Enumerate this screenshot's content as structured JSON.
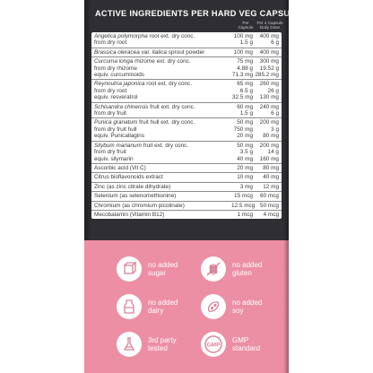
{
  "title": "ACTIVE INGREDIENTS PER HARD VEG CAPSULE:",
  "column_headers": {
    "per_capsule": [
      "Per",
      "Capsule"
    ],
    "daily_dose": [
      "Per 4 Capsule",
      "Daily Dose"
    ]
  },
  "rows": [
    {
      "lines": [
        {
          "latin": "Angelica polymorpha",
          "text": " root ext. dry conc.",
          "v": "100 mg",
          "d": "400 mg"
        },
        {
          "latin": "",
          "text": "from dry root",
          "v": "1.5 g",
          "d": "6 g"
        }
      ]
    },
    {
      "lines": [
        {
          "latin": "Brassica oleracea",
          "text": " var. italica sprout powder",
          "v": "100 mg",
          "d": "400 mg"
        }
      ]
    },
    {
      "lines": [
        {
          "latin": "Curcuma longa",
          "text": " rhizome ext. dry conc.",
          "v": "75 mg",
          "d": "300 mg"
        },
        {
          "latin": "",
          "text": "from dry rhizome",
          "v": "4.88 g",
          "d": "19.52 g"
        },
        {
          "latin": "",
          "text": "equiv. curcuminoids",
          "v": "71.3 mg",
          "d": "285.2 mg"
        }
      ]
    },
    {
      "lines": [
        {
          "latin": "Reynoutria japonica",
          "text": " root ext. dry conc.",
          "v": "65 mg",
          "d": "260 mg"
        },
        {
          "latin": "",
          "text": "from dry root",
          "v": "6.5 g",
          "d": "26 g"
        },
        {
          "latin": "",
          "text": "equiv. resveratrol",
          "v": "32.5 mg",
          "d": "130 mg"
        }
      ]
    },
    {
      "lines": [
        {
          "latin": "Schisandra chinensis",
          "text": " fruit ext. dry conc.",
          "v": "60 mg",
          "d": "240 mg"
        },
        {
          "latin": "",
          "text": "from dry fruit",
          "v": "1.5 g",
          "d": "6 g"
        }
      ]
    },
    {
      "lines": [
        {
          "latin": "Punica granatum",
          "text": " fruit hull ext. dry conc.",
          "v": "50 mg",
          "d": "200 mg"
        },
        {
          "latin": "",
          "text": "from dry fruit hull",
          "v": "750 mg",
          "d": "3 g"
        },
        {
          "latin": "",
          "text": "equiv. Punicallagins",
          "v": "20 mg",
          "d": "80 mg"
        }
      ]
    },
    {
      "lines": [
        {
          "latin": "Silybum marianum",
          "text": " fruit ext. dry conc.",
          "v": "50 mg",
          "d": "200 mg"
        },
        {
          "latin": "",
          "text": "from dry fruit",
          "v": "3.5 g",
          "d": "14 g"
        },
        {
          "latin": "",
          "text": "equiv. silymarin",
          "v": "40 mg",
          "d": "160 mg"
        }
      ]
    },
    {
      "lines": [
        {
          "latin": "",
          "text": "Ascorbic acid (Vit C)",
          "v": "20 mg",
          "d": "80 mg"
        }
      ]
    },
    {
      "lines": [
        {
          "latin": "",
          "text": "Citrus bioflavonoids extract",
          "v": "10 mg",
          "d": "40 mg"
        }
      ]
    },
    {
      "lines": [
        {
          "latin": "",
          "text": "Zinc (as zinc citrate dihydrate)",
          "v": "3 mg",
          "d": "12 mg"
        }
      ]
    },
    {
      "lines": [
        {
          "latin": "",
          "text": "Selenium (as selenomethionine)",
          "v": "15 mcg",
          "d": "60 mcg"
        }
      ]
    },
    {
      "lines": [
        {
          "latin": "",
          "text": "Chromium (as chromium picolinate)",
          "v": "12.5 mcg",
          "d": "50 mcg"
        }
      ]
    },
    {
      "lines": [
        {
          "latin": "",
          "text": "Mecobalamin (Vitamin B12)",
          "v": "1 mcg",
          "d": "4 mcg"
        }
      ]
    }
  ],
  "claims": [
    {
      "icon": "no-sugar-icon",
      "lines": [
        "no added",
        "sugar"
      ]
    },
    {
      "icon": "no-gluten-icon",
      "lines": [
        "no added",
        "gluten"
      ]
    },
    {
      "icon": "no-dairy-icon",
      "lines": [
        "no added",
        "dairy"
      ]
    },
    {
      "icon": "no-soy-icon",
      "lines": [
        "no added",
        "soy"
      ]
    },
    {
      "icon": "third-party-tested-icon",
      "lines": [
        "3rd party",
        "tested"
      ]
    },
    {
      "icon": "gmp-icon",
      "lines": [
        "GMP",
        "standard"
      ],
      "badge": "GMP"
    }
  ],
  "colors": {
    "panel": "#2f2f33",
    "pink": "#ec8fa4",
    "icon": "#d9849a"
  }
}
